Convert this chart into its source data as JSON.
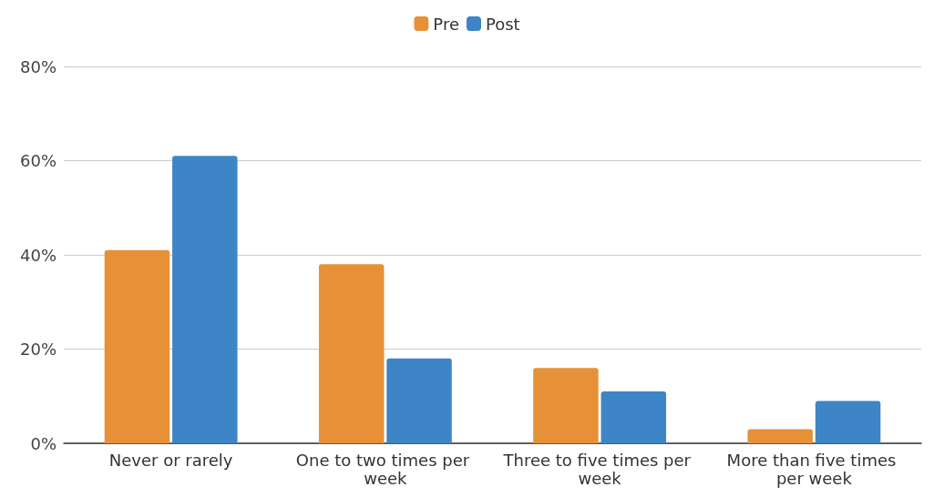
{
  "chart_data": {
    "type": "bar",
    "categories": [
      "Never or rarely",
      "One to two times per week",
      "Three to five times per week",
      "More than five times per week"
    ],
    "series": [
      {
        "name": "Pre",
        "color": "#e69138",
        "values": [
          41,
          38,
          16,
          3
        ]
      },
      {
        "name": "Post",
        "color": "#3d85c6",
        "values": [
          61,
          18,
          11,
          9
        ]
      }
    ],
    "ylim": [
      0,
      80
    ],
    "yticks": [
      {
        "value": 0,
        "label": "0%"
      },
      {
        "value": 20,
        "label": "20%"
      },
      {
        "value": 40,
        "label": "40%"
      },
      {
        "value": 60,
        "label": "60%"
      },
      {
        "value": 80,
        "label": "80%"
      }
    ],
    "grid": "y",
    "legend": "top"
  }
}
